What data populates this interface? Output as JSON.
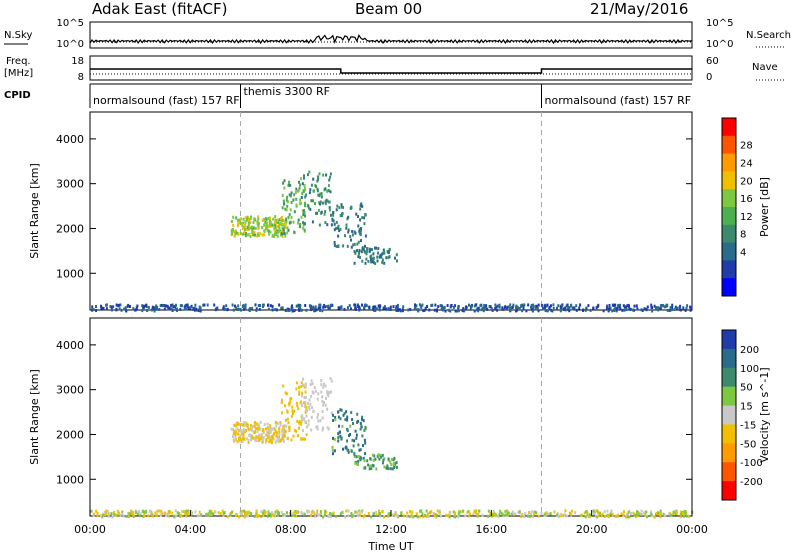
{
  "header": {
    "title": "Adak East (fitACF)",
    "beam": "Beam 00",
    "date": "21/May/2016"
  },
  "summary": {
    "nsky_label": "N.Sky",
    "nsearch_label": "N.Search",
    "freq_label_top": "Freq.",
    "freq_label_unit": "[MHz]",
    "nave_label": "Nave",
    "cpid_label": "CPID",
    "noise_ticks": [
      "10^5",
      "10^0"
    ],
    "freq_ticks": [
      "18",
      "8"
    ],
    "nave_ticks": [
      "60",
      "0"
    ]
  },
  "chart_data": {
    "type": "heatmap",
    "xlabel": "Time UT",
    "x_ticks": [
      "00:00",
      "04:00",
      "08:00",
      "12:00",
      "16:00",
      "20:00",
      "00:00"
    ],
    "xlim_hours": [
      0,
      24
    ],
    "cpid_segments": [
      {
        "start": 0,
        "end": 6,
        "label": "normalsound (fast) 157 RF"
      },
      {
        "start": 6,
        "end": 18,
        "label": "themis 3300 RF"
      },
      {
        "start": 18,
        "end": 24,
        "label": "normalsound (fast) 157 RF"
      }
    ],
    "frequency_mhz": [
      {
        "start": 0,
        "end": 10,
        "value": 12.5
      },
      {
        "start": 10,
        "end": 18,
        "value": 10.5
      },
      {
        "start": 18,
        "end": 24,
        "value": 12.5
      }
    ],
    "panels": [
      {
        "ylabel": "Slant Range [km]",
        "y_ticks": [
          1000,
          2000,
          3000,
          4000
        ],
        "ylim": [
          180,
          4600
        ],
        "colorbar_label": "Power [dB]",
        "colorbar_ticks": [
          "28",
          "24",
          "20",
          "16",
          "12",
          "8",
          "4"
        ],
        "colors": [
          "#0000ff",
          "#1f3ca8",
          "#2a6a8a",
          "#3c8a6e",
          "#4caf50",
          "#7cc840",
          "#f0c000",
          "#ff9a00",
          "#ff5500",
          "#ff0000"
        ]
      },
      {
        "ylabel": "Slant Range [km]",
        "y_ticks": [
          1000,
          2000,
          3000,
          4000
        ],
        "ylim": [
          180,
          4600
        ],
        "colorbar_label": "Velocity [m s^-1]",
        "colorbar_ticks": [
          "200",
          "100",
          "50",
          "15",
          "-15",
          "-50",
          "-100",
          "-200"
        ],
        "colors": [
          "#1f3ca8",
          "#2a6a8a",
          "#3c8a6e",
          "#7cc840",
          "#c8c8c8",
          "#f0c000",
          "#ff9a00",
          "#ff5500",
          "#ff0000"
        ]
      }
    ],
    "scatter_regions": [
      {
        "t0": 5.6,
        "t1": 7.8,
        "r0": 1850,
        "r1": 2300,
        "density": 12,
        "power": [
          14,
          20
        ],
        "velocity": [
          -50,
          15
        ]
      },
      {
        "t0": 7.6,
        "t1": 8.6,
        "r0": 1900,
        "r1": 3200,
        "density": 9,
        "power": [
          10,
          18
        ],
        "velocity": [
          -50,
          -15
        ]
      },
      {
        "t0": 8.4,
        "t1": 9.6,
        "r0": 2100,
        "r1": 3300,
        "density": 8,
        "power": [
          8,
          14
        ],
        "velocity": [
          -15,
          15
        ]
      },
      {
        "t0": 9.6,
        "t1": 11.0,
        "r0": 1600,
        "r1": 2600,
        "density": 7,
        "power": [
          6,
          12
        ],
        "velocity": [
          15,
          200
        ]
      },
      {
        "t0": 10.5,
        "t1": 12.2,
        "r0": 1250,
        "r1": 1600,
        "density": 5,
        "power": [
          6,
          12
        ],
        "velocity": [
          15,
          100
        ]
      },
      {
        "t0": 0.0,
        "t1": 24.0,
        "r0": 190,
        "r1": 330,
        "density": 3,
        "power": [
          4,
          8
        ],
        "velocity": [
          -50,
          50
        ]
      }
    ]
  }
}
